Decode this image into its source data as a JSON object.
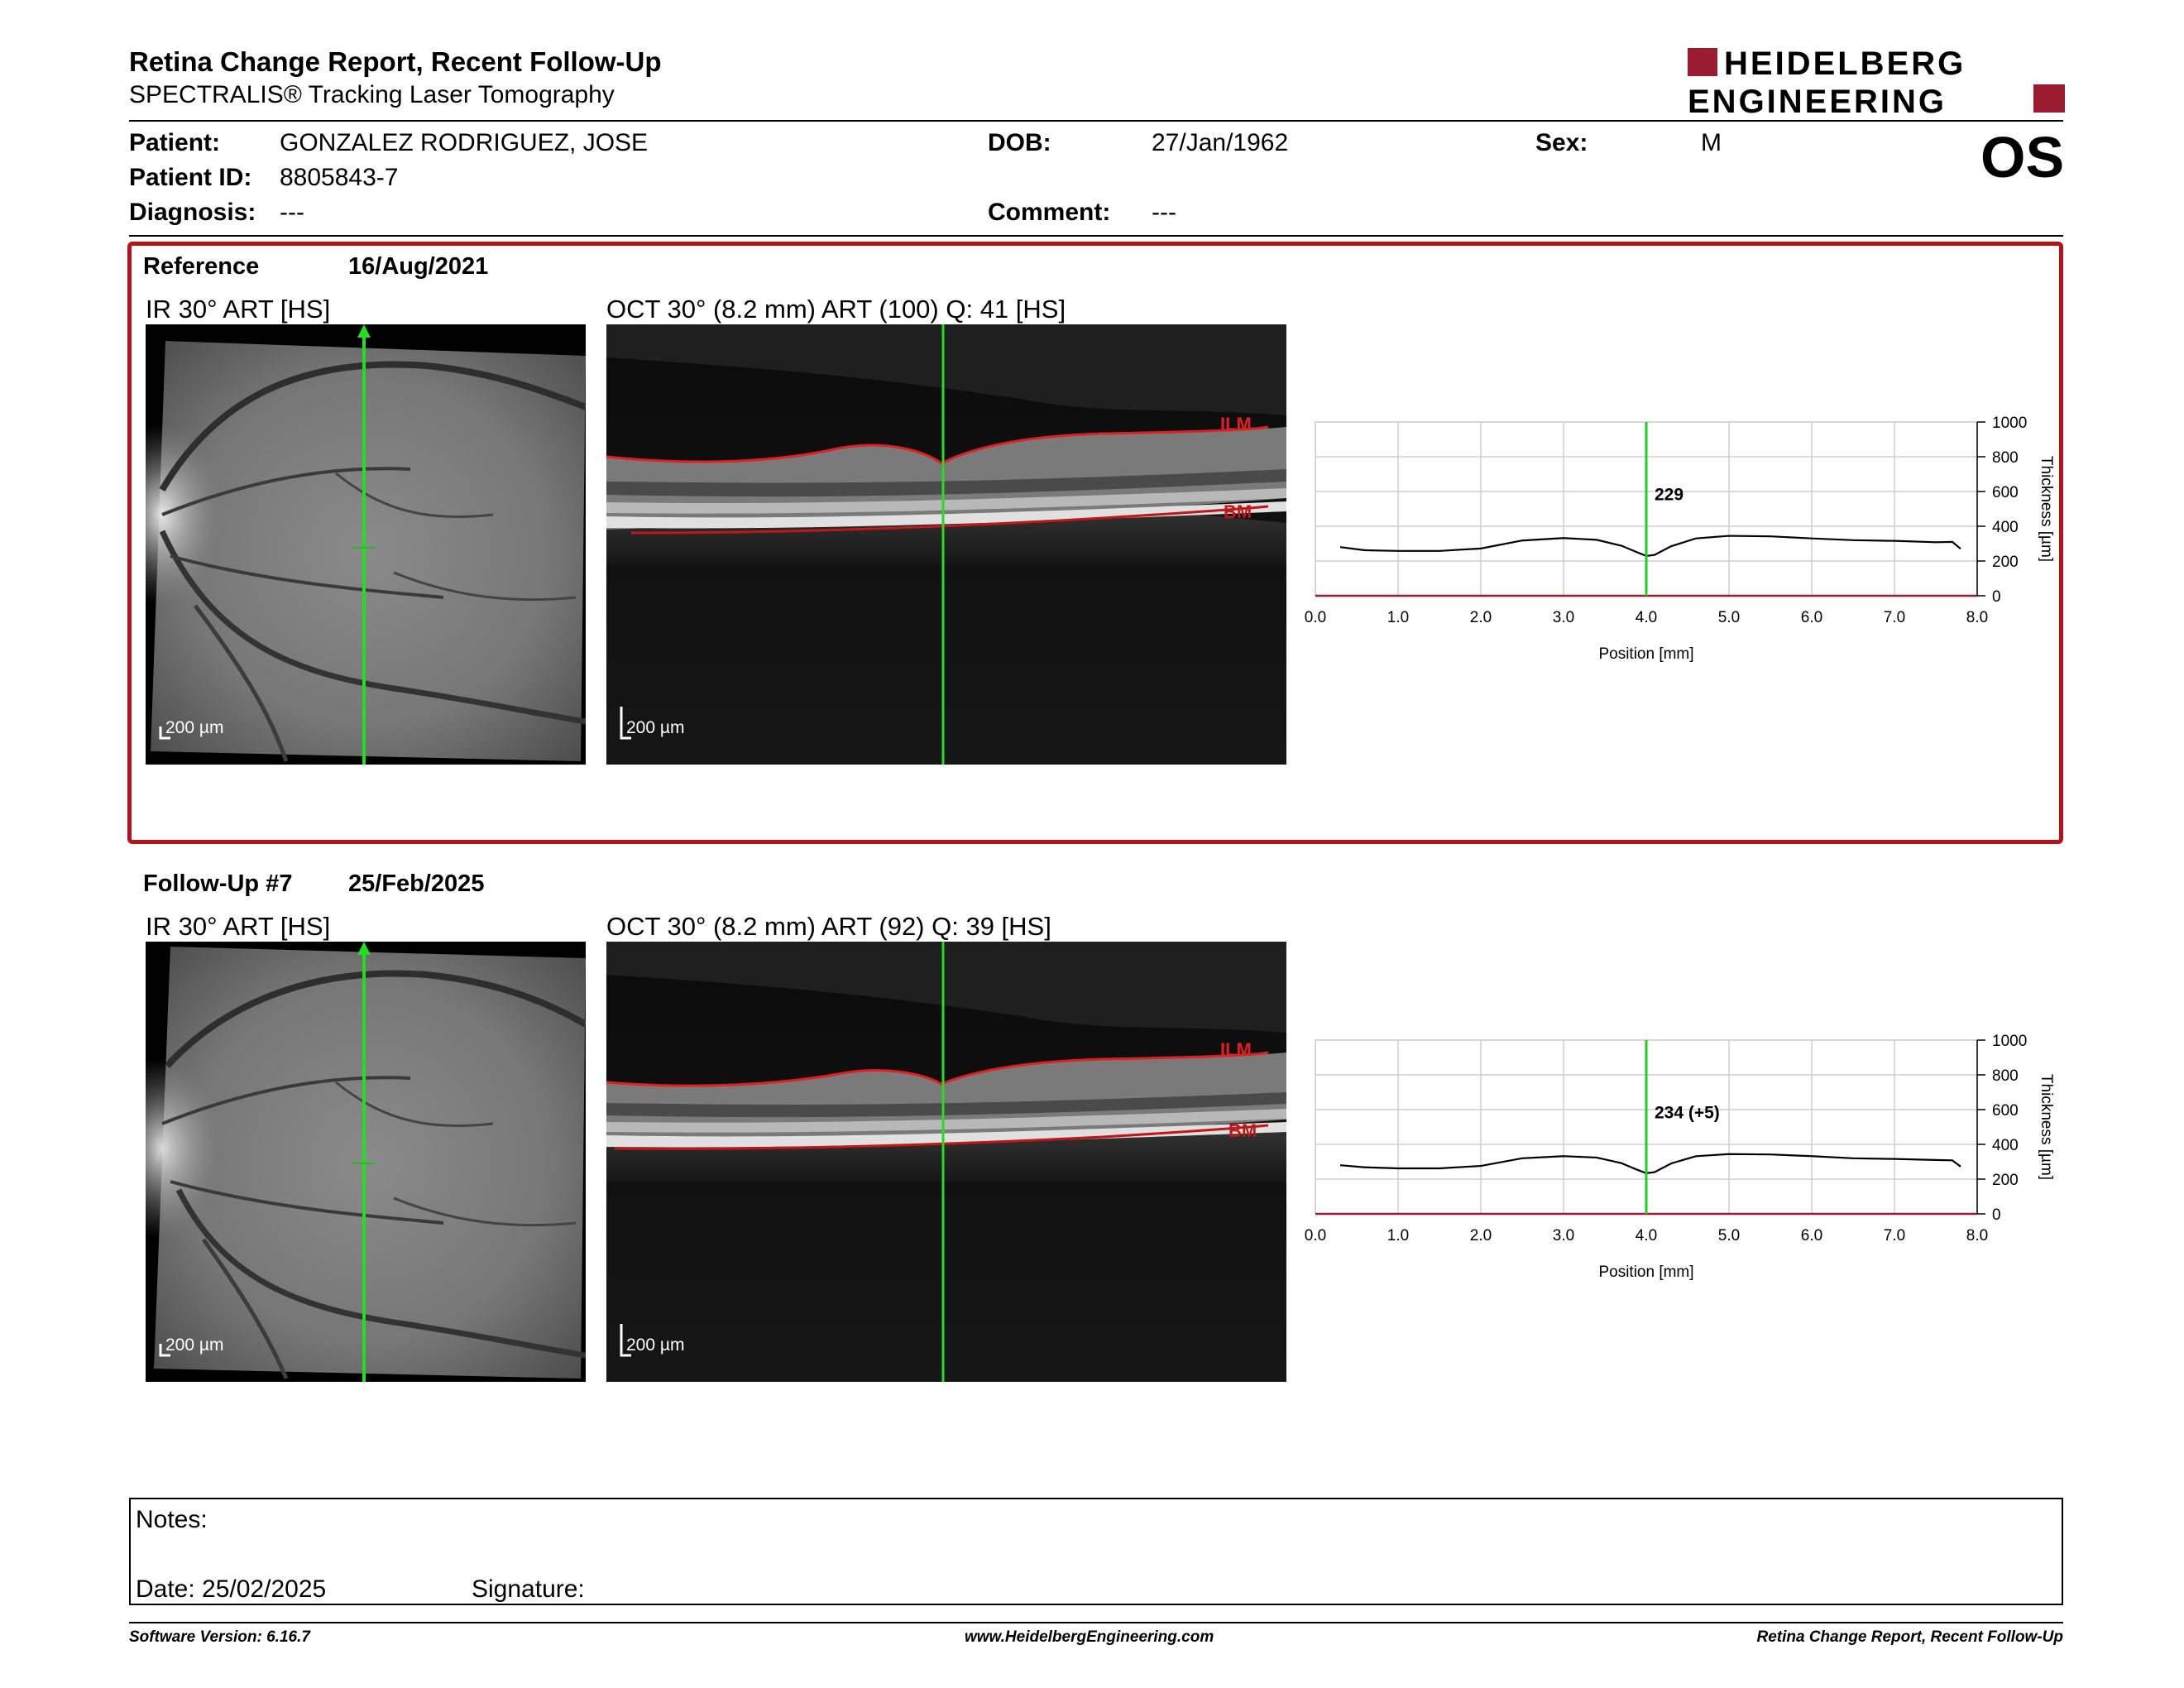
{
  "header": {
    "title": "Retina Change Report, Recent Follow-Up",
    "subtitle": "SPECTRALIS® Tracking Laser Tomography",
    "logo_line1": "HEIDELBERG",
    "logo_line2": "ENGINEERING",
    "brand_color": "#9b1b30"
  },
  "patient": {
    "patient_label": "Patient:",
    "patient_value": "GONZALEZ RODRIGUEZ, JOSE",
    "id_label": "Patient ID:",
    "id_value": "8805843-7",
    "diagnosis_label": "Diagnosis:",
    "diagnosis_value": "---",
    "dob_label": "DOB:",
    "dob_value": "27/Jan/1962",
    "comment_label": "Comment:",
    "comment_value": "---",
    "sex_label": "Sex:",
    "sex_value": "M",
    "eye": "OS"
  },
  "reference": {
    "label": "Reference",
    "date": "16/Aug/2021",
    "ir_title": "IR 30° ART [HS]",
    "oct_title": "OCT 30° (8.2 mm) ART (100) Q: 41 [HS]",
    "scale": "200 µm",
    "ilm": "ILM",
    "bm": "BM"
  },
  "followup": {
    "label": "Follow-Up #7",
    "date": "25/Feb/2025",
    "ir_title": "IR 30° ART [HS]",
    "oct_title": "OCT 30° (8.2 mm) ART (92) Q: 39 [HS]",
    "scale": "200 µm",
    "ilm": "ILM",
    "bm": "BM"
  },
  "chart_data": [
    {
      "type": "line",
      "xlabel": "Position [mm]",
      "ylabel": "Thickness [µm]",
      "xlim": [
        0,
        8
      ],
      "ylim": [
        0,
        1000
      ],
      "x_ticks": [
        "0.0",
        "1.0",
        "2.0",
        "3.0",
        "4.0",
        "5.0",
        "6.0",
        "7.0",
        "8.0"
      ],
      "y_ticks": [
        "0",
        "200",
        "400",
        "600",
        "800",
        "1000"
      ],
      "grid": true,
      "cursor_x": 4.0,
      "cursor_label": "229",
      "series": [
        {
          "x": [
            0.3,
            0.6,
            1.0,
            1.5,
            2.0,
            2.5,
            3.0,
            3.4,
            3.7,
            3.9,
            4.0,
            4.1,
            4.3,
            4.6,
            5.0,
            5.5,
            6.0,
            6.5,
            7.0,
            7.5,
            7.7,
            7.8
          ],
          "values": [
            280,
            262,
            258,
            258,
            272,
            318,
            332,
            322,
            288,
            248,
            229,
            235,
            285,
            330,
            345,
            342,
            330,
            320,
            316,
            308,
            310,
            270
          ]
        }
      ]
    },
    {
      "type": "line",
      "xlabel": "Position [mm]",
      "ylabel": "Thickness [µm]",
      "xlim": [
        0,
        8
      ],
      "ylim": [
        0,
        1000
      ],
      "x_ticks": [
        "0.0",
        "1.0",
        "2.0",
        "3.0",
        "4.0",
        "5.0",
        "6.0",
        "7.0",
        "8.0"
      ],
      "y_ticks": [
        "0",
        "200",
        "400",
        "600",
        "800",
        "1000"
      ],
      "grid": true,
      "cursor_x": 4.0,
      "cursor_label": "234 (+5)",
      "series": [
        {
          "x": [
            0.3,
            0.6,
            1.0,
            1.5,
            2.0,
            2.5,
            3.0,
            3.4,
            3.7,
            3.9,
            4.0,
            4.1,
            4.3,
            4.6,
            5.0,
            5.5,
            6.0,
            6.5,
            7.0,
            7.5,
            7.7,
            7.8
          ],
          "values": [
            280,
            268,
            262,
            262,
            276,
            320,
            332,
            324,
            292,
            252,
            234,
            240,
            290,
            332,
            344,
            342,
            332,
            320,
            316,
            310,
            308,
            272
          ]
        }
      ]
    }
  ],
  "notes": {
    "notes_label": "Notes:",
    "date_label": "Date: 25/02/2025",
    "signature_label": "Signature:"
  },
  "footer": {
    "version": "Software Version: 6.16.7",
    "website": "www.HeidelbergEngineering.com",
    "report_name": "Retina Change Report, Recent Follow-Up"
  }
}
